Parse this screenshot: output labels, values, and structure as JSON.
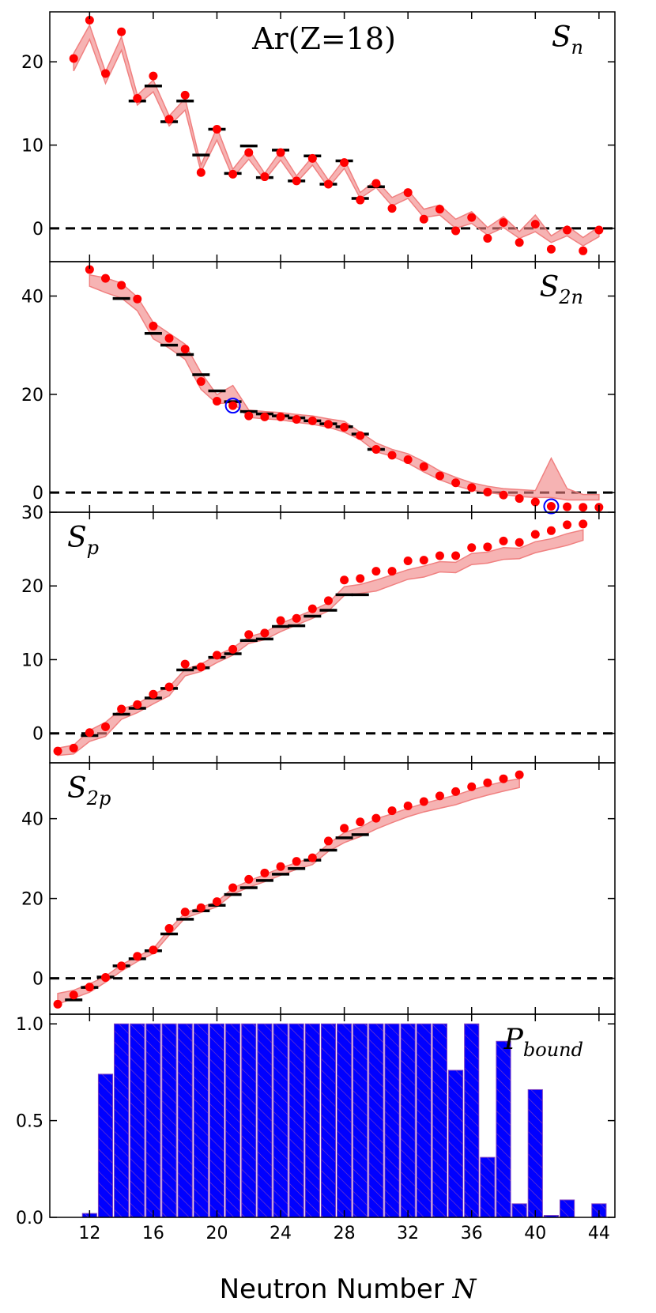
{
  "title": "Ar(Z=18)",
  "xlabel": "Neutron Number N",
  "xlabel_prefix": "Neutron Number ",
  "xlabel_var": "N",
  "xlim": [
    9.5,
    45
  ],
  "xticks": [
    12,
    16,
    20,
    24,
    28,
    32,
    36,
    40,
    44
  ],
  "colors": {
    "point": "#ff0000",
    "band": "#f08080",
    "exp": "#000000",
    "bar": "#0000ff",
    "circle": "#0000ff"
  },
  "chart_data": [
    {
      "type": "scatter",
      "id": "Sn",
      "label": "S",
      "label_sub": "n",
      "label_pos": "top-right",
      "ylim": [
        -4,
        26
      ],
      "yticks": [
        0,
        10,
        20
      ],
      "grid": false,
      "predicted": {
        "x": [
          11,
          12,
          13,
          14,
          15,
          16,
          17,
          18,
          19,
          20,
          21,
          22,
          23,
          24,
          25,
          26,
          27,
          28,
          29,
          30,
          31,
          32,
          33,
          34,
          35,
          36,
          37,
          38,
          39,
          40,
          41,
          42,
          43,
          44
        ],
        "y": [
          20.4,
          25.0,
          18.6,
          23.6,
          15.6,
          18.3,
          13.1,
          16.0,
          6.7,
          11.9,
          6.5,
          9.1,
          6.2,
          9.1,
          5.7,
          8.4,
          5.3,
          7.9,
          3.4,
          5.4,
          2.4,
          4.3,
          1.1,
          2.3,
          -0.3,
          1.3,
          -1.2,
          0.7,
          -1.7,
          0.5,
          -2.5,
          -0.2,
          -2.7,
          -0.2
        ]
      },
      "band": {
        "x": [
          11,
          12,
          13,
          14,
          15,
          16,
          17,
          18,
          19,
          20,
          21,
          22,
          23,
          24,
          25,
          26,
          27,
          28,
          29,
          30,
          31,
          32,
          33,
          34,
          35,
          36,
          37,
          38,
          39,
          40,
          41,
          42,
          43,
          44
        ],
        "lo": [
          18.9,
          22.7,
          17.4,
          21.4,
          14.8,
          16.4,
          12.3,
          14.2,
          6.8,
          10.6,
          6.1,
          8.3,
          5.8,
          8.2,
          5.5,
          7.6,
          4.9,
          7.2,
          3.6,
          4.9,
          2.7,
          3.6,
          1.3,
          1.6,
          0.0,
          0.6,
          -0.8,
          0.1,
          -1.2,
          -0.4,
          -1.7,
          -0.9,
          -2.1,
          -1.0
        ],
        "hi": [
          21.0,
          24.4,
          18.8,
          23.0,
          16.0,
          17.8,
          13.5,
          15.6,
          7.6,
          12.1,
          7.1,
          9.5,
          6.6,
          9.3,
          6.3,
          8.6,
          5.8,
          8.3,
          4.3,
          5.8,
          3.7,
          4.6,
          2.3,
          2.8,
          1.1,
          2.0,
          0.1,
          1.4,
          -0.4,
          1.6,
          -0.9,
          0.3,
          -1.1,
          0.2
        ]
      },
      "experiment": {
        "x": [
          15,
          16,
          17,
          18,
          19,
          20,
          21,
          22,
          23,
          24,
          25,
          26,
          27,
          28,
          29,
          30
        ],
        "y": [
          15.3,
          17.1,
          12.8,
          15.3,
          8.8,
          11.9,
          6.6,
          9.9,
          6.1,
          9.4,
          5.7,
          8.7,
          5.3,
          8.1,
          3.6,
          5.0
        ]
      },
      "circled": {
        "x": [],
        "y": []
      }
    },
    {
      "type": "scatter",
      "id": "S2n",
      "label": "S",
      "label_sub": "2n",
      "label_pos": "top-right",
      "ylim": [
        -4,
        47
      ],
      "yticks": [
        0,
        20,
        40
      ],
      "grid": false,
      "predicted": {
        "x": [
          12,
          13,
          14,
          15,
          16,
          17,
          18,
          19,
          20,
          21,
          22,
          23,
          24,
          25,
          26,
          27,
          28,
          29,
          30,
          31,
          32,
          33,
          34,
          35,
          36,
          37,
          38,
          39,
          40,
          41,
          42,
          43,
          44
        ],
        "y": [
          45.4,
          43.6,
          42.2,
          39.4,
          33.9,
          31.4,
          29.2,
          22.6,
          18.6,
          17.7,
          15.6,
          15.4,
          15.4,
          14.9,
          14.6,
          13.9,
          13.3,
          11.6,
          8.8,
          7.6,
          6.7,
          5.3,
          3.4,
          2.0,
          1.0,
          0.1,
          -0.5,
          -1.2,
          -1.9,
          -2.8,
          -2.9,
          -3.0,
          -3.0
        ]
      },
      "band": {
        "x": [
          12,
          13,
          14,
          15,
          16,
          17,
          18,
          19,
          20,
          21,
          22,
          23,
          24,
          25,
          26,
          27,
          28,
          29,
          30,
          31,
          32,
          33,
          34,
          35,
          36,
          37,
          38,
          39,
          40,
          41,
          42,
          43,
          44
        ],
        "lo": [
          42.0,
          40.7,
          39.6,
          37.0,
          31.3,
          29.4,
          27.1,
          21.0,
          18.1,
          18.3,
          15.3,
          15.0,
          14.8,
          14.3,
          13.9,
          13.3,
          12.3,
          10.8,
          8.3,
          7.4,
          6.0,
          4.2,
          2.6,
          1.4,
          0.5,
          0.0,
          -0.4,
          -0.8,
          -1.0,
          -1.0,
          -1.5,
          -1.5,
          -1.5
        ],
        "hi": [
          44.3,
          43.7,
          42.6,
          39.8,
          34.6,
          32.4,
          30.2,
          24.4,
          19.9,
          21.8,
          16.8,
          16.5,
          16.3,
          15.9,
          15.6,
          15.0,
          14.5,
          12.3,
          10.1,
          8.8,
          7.9,
          6.3,
          4.4,
          3.1,
          2.0,
          1.3,
          0.8,
          0.6,
          0.4,
          7.0,
          0.8,
          -0.4,
          -0.4
        ]
      },
      "experiment": {
        "x": [
          14,
          16,
          17,
          18,
          19,
          20,
          21,
          22,
          23,
          24,
          25,
          26,
          27,
          28,
          29,
          30
        ],
        "y": [
          39.5,
          32.4,
          30.0,
          28.1,
          24.0,
          20.7,
          18.5,
          16.5,
          16.0,
          15.6,
          15.2,
          14.6,
          14.0,
          13.4,
          11.9,
          8.8
        ]
      },
      "circled": {
        "x": [
          21,
          41
        ],
        "y": [
          17.7,
          -2.8
        ]
      }
    },
    {
      "type": "scatter",
      "id": "Sp",
      "label": "S",
      "label_sub": "p",
      "label_pos": "top-left",
      "ylim": [
        -4,
        30
      ],
      "yticks": [
        0,
        10,
        20,
        30
      ],
      "grid": false,
      "predicted": {
        "x": [
          10,
          11,
          12,
          13,
          14,
          15,
          16,
          17,
          18,
          19,
          20,
          21,
          22,
          23,
          24,
          25,
          26,
          27,
          28,
          29,
          30,
          31,
          32,
          33,
          34,
          35,
          36,
          37,
          38,
          39,
          40,
          41,
          42,
          43
        ],
        "y": [
          -2.4,
          -2.0,
          0.1,
          0.9,
          3.3,
          3.9,
          5.3,
          6.3,
          9.4,
          9.0,
          10.6,
          11.4,
          13.4,
          13.6,
          15.3,
          15.6,
          16.9,
          18.0,
          20.8,
          21.0,
          22.0,
          22.0,
          23.4,
          23.5,
          24.1,
          24.1,
          25.2,
          25.3,
          26.1,
          25.9,
          27.0,
          27.5,
          28.3,
          28.4
        ]
      },
      "band": {
        "x": [
          10,
          11,
          12,
          13,
          14,
          15,
          16,
          17,
          18,
          19,
          20,
          21,
          22,
          23,
          24,
          25,
          26,
          27,
          28,
          29,
          30,
          31,
          32,
          33,
          34,
          35,
          36,
          37,
          38,
          39,
          40,
          41,
          42,
          43
        ],
        "lo": [
          -3.0,
          -2.8,
          -1.1,
          -0.4,
          1.9,
          2.8,
          4.0,
          5.1,
          7.8,
          8.4,
          9.6,
          10.6,
          12.2,
          12.7,
          13.8,
          14.7,
          15.6,
          16.6,
          18.7,
          19.0,
          19.3,
          20.1,
          20.9,
          21.2,
          21.9,
          21.8,
          22.9,
          23.1,
          23.6,
          23.7,
          24.5,
          25.0,
          25.5,
          26.2
        ],
        "hi": [
          -2.0,
          -1.6,
          0.4,
          1.5,
          3.3,
          4.0,
          5.3,
          6.3,
          8.7,
          9.4,
          10.6,
          11.6,
          13.1,
          13.7,
          14.9,
          15.8,
          16.7,
          17.7,
          19.9,
          20.2,
          20.8,
          21.5,
          22.2,
          22.7,
          23.3,
          23.2,
          24.4,
          24.6,
          25.2,
          25.1,
          26.0,
          26.4,
          27.1,
          27.6
        ]
      },
      "experiment": {
        "x": [
          12,
          14,
          15,
          16,
          17,
          18,
          19,
          20,
          21,
          22,
          23,
          24,
          25,
          26,
          27,
          28,
          29
        ],
        "y": [
          -0.3,
          2.6,
          3.4,
          4.8,
          6.1,
          8.6,
          8.9,
          10.3,
          10.8,
          12.6,
          12.8,
          14.5,
          14.6,
          15.9,
          16.7,
          18.8,
          18.8
        ]
      },
      "circled": {
        "x": [],
        "y": []
      }
    },
    {
      "type": "scatter",
      "id": "S2p",
      "label": "S",
      "label_sub": "2p",
      "label_pos": "top-left",
      "ylim": [
        -9,
        54
      ],
      "yticks": [
        0,
        20,
        40
      ],
      "grid": false,
      "predicted": {
        "x": [
          10,
          11,
          12,
          13,
          14,
          15,
          16,
          17,
          18,
          19,
          20,
          21,
          22,
          23,
          24,
          25,
          26,
          27,
          28,
          29,
          30,
          31,
          32,
          33,
          34,
          35,
          36,
          37,
          38,
          39
        ],
        "y": [
          -6.5,
          -4.2,
          -2.2,
          0.2,
          3.1,
          5.5,
          7.1,
          12.5,
          16.6,
          17.7,
          19.2,
          22.7,
          24.8,
          26.4,
          28.0,
          29.3,
          30.2,
          34.4,
          37.6,
          39.2,
          40.1,
          42.0,
          43.2,
          44.3,
          45.7,
          46.8,
          48.0,
          49.0,
          50.0,
          51.0
        ]
      },
      "band": {
        "x": [
          10,
          11,
          12,
          13,
          14,
          15,
          16,
          17,
          18,
          19,
          20,
          21,
          22,
          23,
          24,
          25,
          26,
          27,
          28,
          29,
          30,
          31,
          32,
          33,
          34,
          35,
          36,
          37,
          38,
          39
        ],
        "lo": [
          -6.5,
          -5.0,
          -3.5,
          -1.0,
          1.8,
          4.2,
          6.2,
          10.8,
          15.1,
          16.5,
          17.9,
          21.1,
          22.8,
          24.2,
          25.8,
          27.3,
          28.5,
          31.8,
          34.0,
          35.5,
          37.4,
          39.0,
          40.5,
          41.7,
          42.6,
          43.5,
          44.8,
          45.9,
          46.9,
          47.8
        ],
        "hi": [
          -3.8,
          -3.0,
          -1.4,
          0.5,
          3.4,
          5.5,
          7.4,
          12.3,
          16.4,
          17.8,
          19.2,
          22.6,
          24.4,
          26.0,
          27.6,
          29.0,
          30.2,
          33.7,
          36.5,
          37.8,
          40.0,
          41.2,
          42.6,
          43.8,
          44.9,
          45.9,
          47.2,
          48.3,
          49.3,
          50.0
        ]
      },
      "experiment": {
        "x": [
          11,
          12,
          13,
          14,
          15,
          16,
          17,
          18,
          19,
          20,
          21,
          22,
          23,
          24,
          25,
          26,
          27,
          28,
          29
        ],
        "y": [
          -5.4,
          -2.3,
          0.3,
          3.1,
          4.9,
          6.9,
          11.1,
          14.8,
          16.9,
          18.3,
          21.0,
          22.7,
          24.5,
          26.1,
          27.5,
          29.6,
          32.1,
          35.2,
          36.0
        ]
      },
      "circled": {
        "x": [],
        "y": []
      }
    },
    {
      "type": "bar",
      "id": "Pbound",
      "label": "P",
      "label_sub": "bound",
      "label_pos": "top-right",
      "ylim": [
        0,
        1.05
      ],
      "yticks": [
        0.0,
        0.5,
        1.0
      ],
      "ytick_labels": [
        "0.0",
        "0.5",
        "1.0"
      ],
      "grid": false,
      "categories": [
        10,
        11,
        12,
        13,
        14,
        15,
        16,
        17,
        18,
        19,
        20,
        21,
        22,
        23,
        24,
        25,
        26,
        27,
        28,
        29,
        30,
        31,
        32,
        33,
        34,
        35,
        36,
        37,
        38,
        39,
        40,
        41,
        42,
        43,
        44
      ],
      "values": [
        0.0,
        0.0,
        0.02,
        0.74,
        1.0,
        1.0,
        1.0,
        1.0,
        1.0,
        1.0,
        1.0,
        1.0,
        1.0,
        1.0,
        1.0,
        1.0,
        1.0,
        1.0,
        1.0,
        1.0,
        1.0,
        1.0,
        1.0,
        1.0,
        1.0,
        0.76,
        1.0,
        0.31,
        0.91,
        0.07,
        0.66,
        0.01,
        0.09,
        0.0,
        0.07
      ]
    }
  ]
}
